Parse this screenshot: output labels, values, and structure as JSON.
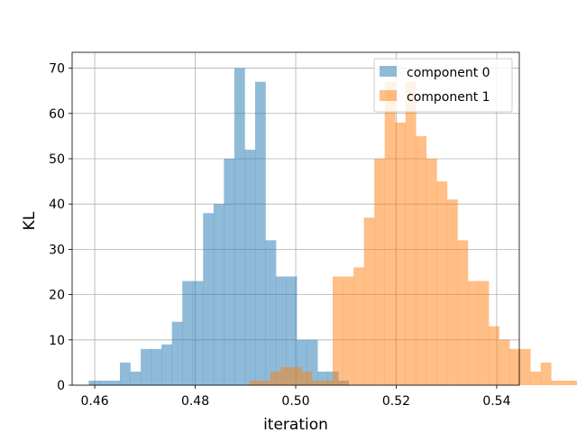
{
  "chart_data": {
    "type": "histogram",
    "xlabel": "iteration",
    "ylabel": "KL",
    "xlim": [
      0.4555,
      0.5445
    ],
    "ylim": [
      0,
      73.5
    ],
    "xticks": [
      0.46,
      0.48,
      0.5,
      0.52,
      0.54
    ],
    "xtick_labels": [
      "0.46",
      "0.48",
      "0.50",
      "0.52",
      "0.54"
    ],
    "yticks": [
      0,
      10,
      20,
      30,
      40,
      50,
      60,
      70
    ],
    "ytick_labels": [
      "0",
      "10",
      "20",
      "30",
      "40",
      "50",
      "60",
      "70"
    ],
    "grid": true,
    "legend_position": "upper right",
    "series": [
      {
        "name": "component 0",
        "color": "#1f77b4",
        "opacity": 0.5,
        "bin_start": 0.4588,
        "bin_width": 0.00207,
        "counts": [
          1,
          1,
          1,
          5,
          3,
          8,
          8,
          9,
          14,
          23,
          23,
          38,
          40,
          50,
          70,
          52,
          67,
          32,
          24,
          24,
          10,
          10,
          3,
          3,
          1
        ]
      },
      {
        "name": "component 1",
        "color": "#ff7f0e",
        "opacity": 0.5,
        "bin_start": 0.4908,
        "bin_width": 0.00207,
        "counts": [
          1,
          1,
          3,
          4,
          4,
          3,
          1,
          1,
          24,
          24,
          26,
          37,
          50,
          67,
          58,
          67,
          55,
          50,
          45,
          41,
          32,
          23,
          23,
          13,
          10,
          8,
          8,
          3,
          5,
          1,
          1,
          1
        ]
      }
    ]
  }
}
